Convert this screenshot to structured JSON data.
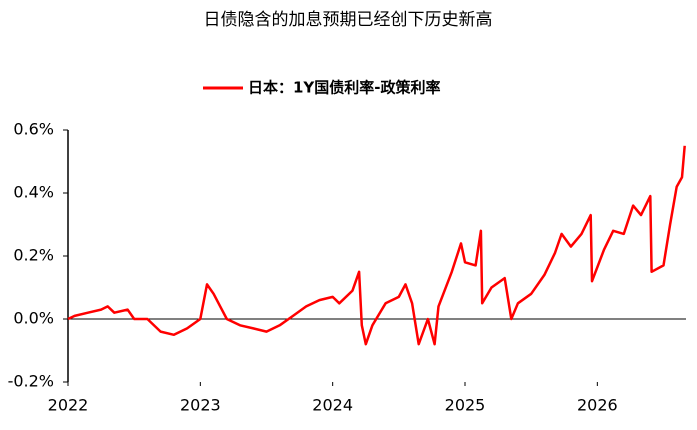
{
  "chart_data": {
    "type": "line",
    "title": "日债隐含的加息预期已经创下历史新高",
    "x": [
      2022.0,
      2022.05,
      2022.15,
      2022.25,
      2022.3,
      2022.35,
      2022.45,
      2022.5,
      2022.6,
      2022.7,
      2022.8,
      2022.9,
      2023.0,
      2023.05,
      2023.1,
      2023.15,
      2023.2,
      2023.3,
      2023.4,
      2023.5,
      2023.6,
      2023.7,
      2023.8,
      2023.9,
      2024.0,
      2024.05,
      2024.15,
      2024.2,
      2024.22,
      2024.25,
      2024.3,
      2024.4,
      2024.5,
      2024.55,
      2024.6,
      2024.65,
      2024.72,
      2024.77,
      2024.8,
      2024.9,
      2024.97,
      2025.0,
      2025.08,
      2025.12,
      2025.13,
      2025.2,
      2025.3,
      2025.35,
      2025.4,
      2025.5,
      2025.6,
      2025.68,
      2025.73,
      2025.8,
      2025.88,
      2025.95,
      2025.96,
      2026.05,
      2026.12,
      2026.2,
      2026.27,
      2026.33,
      2026.4,
      2026.41,
      2026.5,
      2026.55,
      2026.6,
      2026.64,
      2026.66
    ],
    "series": [
      {
        "name": "日本：1Y国债利率-政策利率",
        "color": "#ff0000",
        "values": [
          0.0,
          0.01,
          0.02,
          0.03,
          0.04,
          0.02,
          0.03,
          0.0,
          0.0,
          -0.04,
          -0.05,
          -0.03,
          0.0,
          0.11,
          0.08,
          0.04,
          0.0,
          -0.02,
          -0.03,
          -0.04,
          -0.02,
          0.01,
          0.04,
          0.06,
          0.07,
          0.05,
          0.09,
          0.15,
          -0.02,
          -0.08,
          -0.02,
          0.05,
          0.07,
          0.11,
          0.05,
          -0.08,
          0.0,
          -0.08,
          0.04,
          0.15,
          0.24,
          0.18,
          0.17,
          0.28,
          0.05,
          0.1,
          0.13,
          0.0,
          0.05,
          0.08,
          0.14,
          0.21,
          0.27,
          0.23,
          0.27,
          0.33,
          0.12,
          0.22,
          0.28,
          0.27,
          0.36,
          0.33,
          0.39,
          0.15,
          0.17,
          0.3,
          0.42,
          0.45,
          0.55
        ]
      }
    ],
    "xlim": [
      2022,
      2026.67
    ],
    "xticks": [
      2022,
      2023,
      2024,
      2025,
      2026
    ],
    "ylim": [
      -0.2,
      0.6
    ],
    "yticks": [
      {
        "value": -0.2,
        "label": "-0.2%"
      },
      {
        "value": 0.0,
        "label": "0.0%"
      },
      {
        "value": 0.2,
        "label": "0.2%"
      },
      {
        "value": 0.4,
        "label": "0.4%"
      },
      {
        "value": 0.6,
        "label": "0.6%"
      }
    ],
    "legend": "top"
  }
}
